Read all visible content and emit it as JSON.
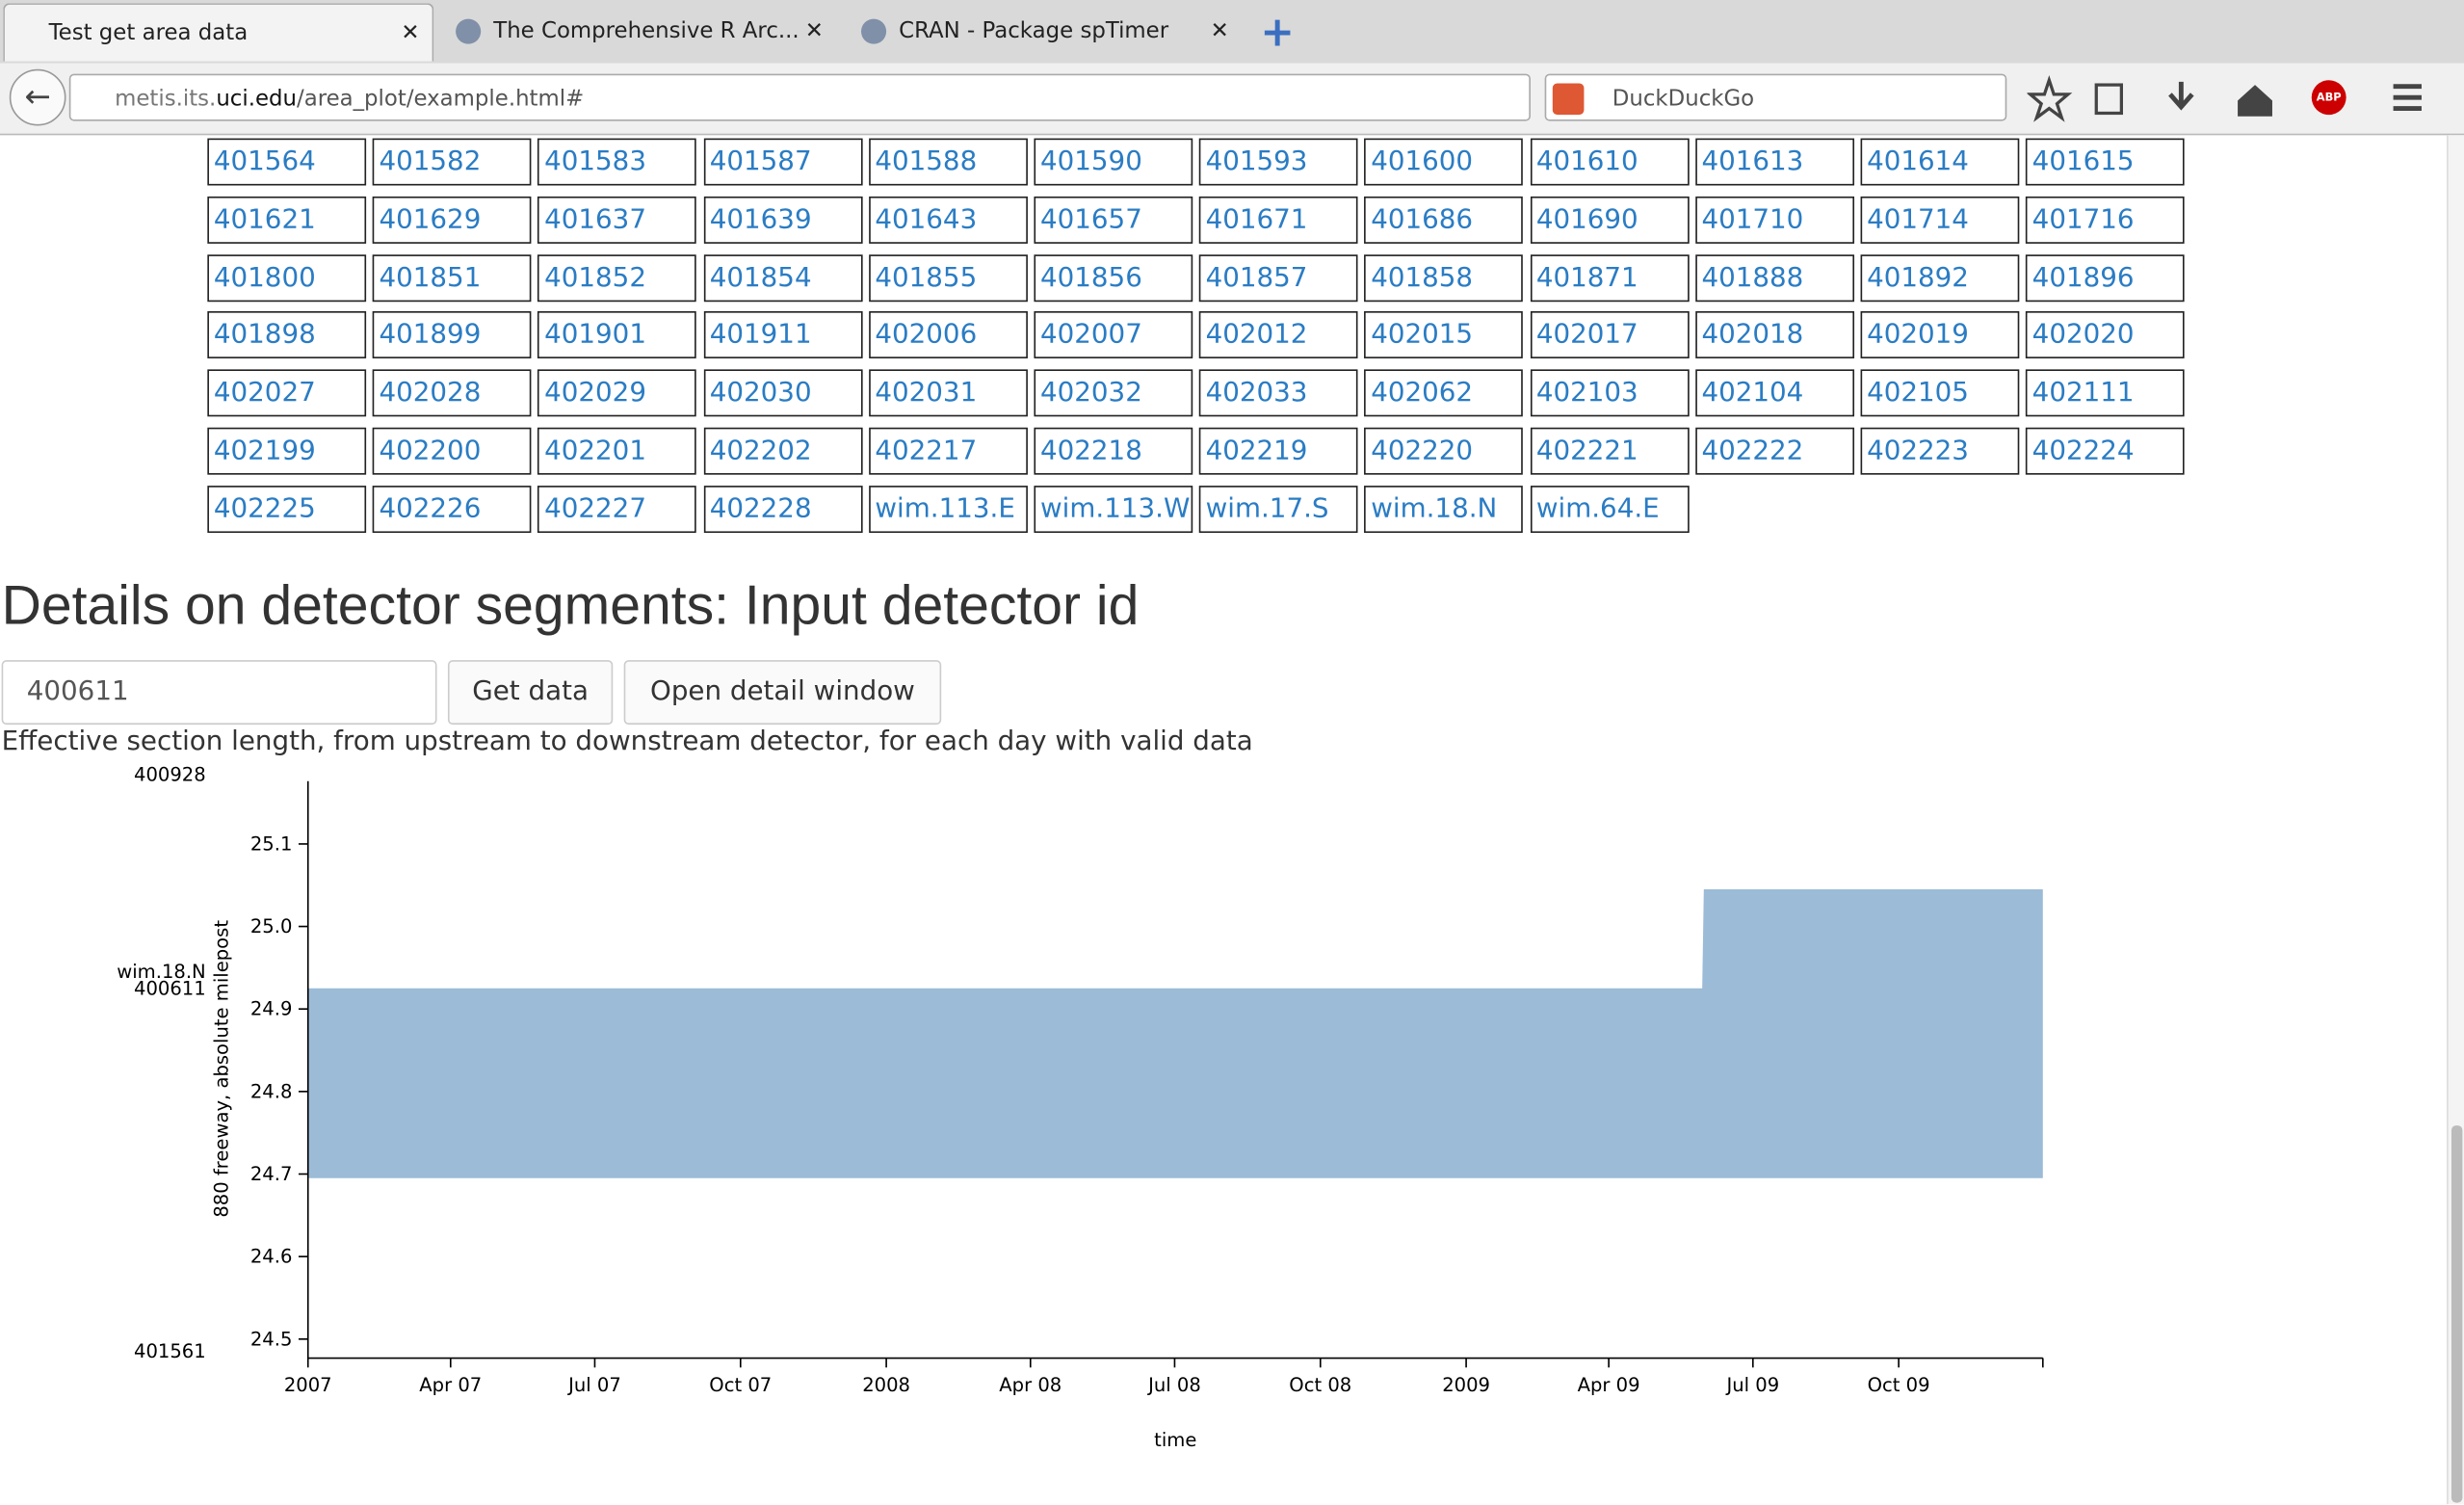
{
  "browser": {
    "tabs": [
      "Test get area data",
      "The Comprehensive R Arc...",
      "CRAN - Package spTimer"
    ],
    "url": {
      "prefix": "metis.its.",
      "domain": "uci.edu",
      "path": "/area_plot/example.html#"
    },
    "search_engine": "DuckDuckGo",
    "adblock": "ABP"
  },
  "detector_ids": [
    "401564",
    "401582",
    "401583",
    "401587",
    "401588",
    "401590",
    "401593",
    "401600",
    "401610",
    "401613",
    "401614",
    "401615",
    "401621",
    "401629",
    "401637",
    "401639",
    "401643",
    "401657",
    "401671",
    "401686",
    "401690",
    "401710",
    "401714",
    "401716",
    "401800",
    "401851",
    "401852",
    "401854",
    "401855",
    "401856",
    "401857",
    "401858",
    "401871",
    "401888",
    "401892",
    "401896",
    "401898",
    "401899",
    "401901",
    "401911",
    "402006",
    "402007",
    "402012",
    "402015",
    "402017",
    "402018",
    "402019",
    "402020",
    "402027",
    "402028",
    "402029",
    "402030",
    "402031",
    "402032",
    "402033",
    "402062",
    "402103",
    "402104",
    "402105",
    "402111",
    "402199",
    "402200",
    "402201",
    "402202",
    "402217",
    "402218",
    "402219",
    "402220",
    "402221",
    "402222",
    "402223",
    "402224",
    "402225",
    "402226",
    "402227",
    "402228",
    "wim.113.E",
    "wim.113.W",
    "wim.17.S",
    "wim.18.N",
    "wim.64.E"
  ],
  "details": {
    "heading": "Details on detector segments: Input detector id",
    "input_value": "400611",
    "buttons": [
      "Get data",
      "Open detail window"
    ],
    "description": "Effective section length, from upstream to downstream detector, for each day with valid data"
  },
  "chart_data": {
    "type": "area",
    "x_label": "time",
    "y_label": "880 freeway, absolute milepost",
    "x": [
      "2007-01-01",
      "2009-05-30",
      "2009-05-31",
      "2009-12-31"
    ],
    "series": [
      {
        "name": "upper",
        "color": "#9bbbd7",
        "values": [
          24.925,
          24.925,
          25.045,
          25.045
        ]
      },
      {
        "name": "lower",
        "color": "#9bbbd7",
        "values": [
          24.695,
          24.695,
          24.695,
          24.695
        ]
      }
    ],
    "xlim": [
      "2007-01-01",
      "2009-12-31"
    ],
    "xticks": [
      {
        "value": "2007-01-01",
        "label": "2007"
      },
      {
        "value": "2007-04-01",
        "label": "Apr 07"
      },
      {
        "value": "2007-07-01",
        "label": "Jul 07"
      },
      {
        "value": "2007-10-01",
        "label": "Oct 07"
      },
      {
        "value": "2008-01-01",
        "label": "2008"
      },
      {
        "value": "2008-04-01",
        "label": "Apr 08"
      },
      {
        "value": "2008-07-01",
        "label": "Jul 08"
      },
      {
        "value": "2008-10-01",
        "label": "Oct 08"
      },
      {
        "value": "2009-01-01",
        "label": "2009"
      },
      {
        "value": "2009-04-01",
        "label": "Apr 09"
      },
      {
        "value": "2009-07-01",
        "label": "Jul 09"
      },
      {
        "value": "2009-10-01",
        "label": "Oct 09"
      }
    ],
    "ylim": [
      24.477,
      25.176
    ],
    "yticks": [
      24.5,
      24.6,
      24.7,
      24.8,
      24.9,
      {
        "value": 25.0,
        "label": "25.0"
      },
      25.1
    ],
    "detector_labels": [
      {
        "value": 25.184,
        "label": "400928"
      },
      {
        "value": 24.945,
        "label": "wim.18.N"
      },
      {
        "value": 24.925,
        "label": "400611"
      },
      {
        "value": 24.485,
        "label": "401561"
      }
    ]
  }
}
